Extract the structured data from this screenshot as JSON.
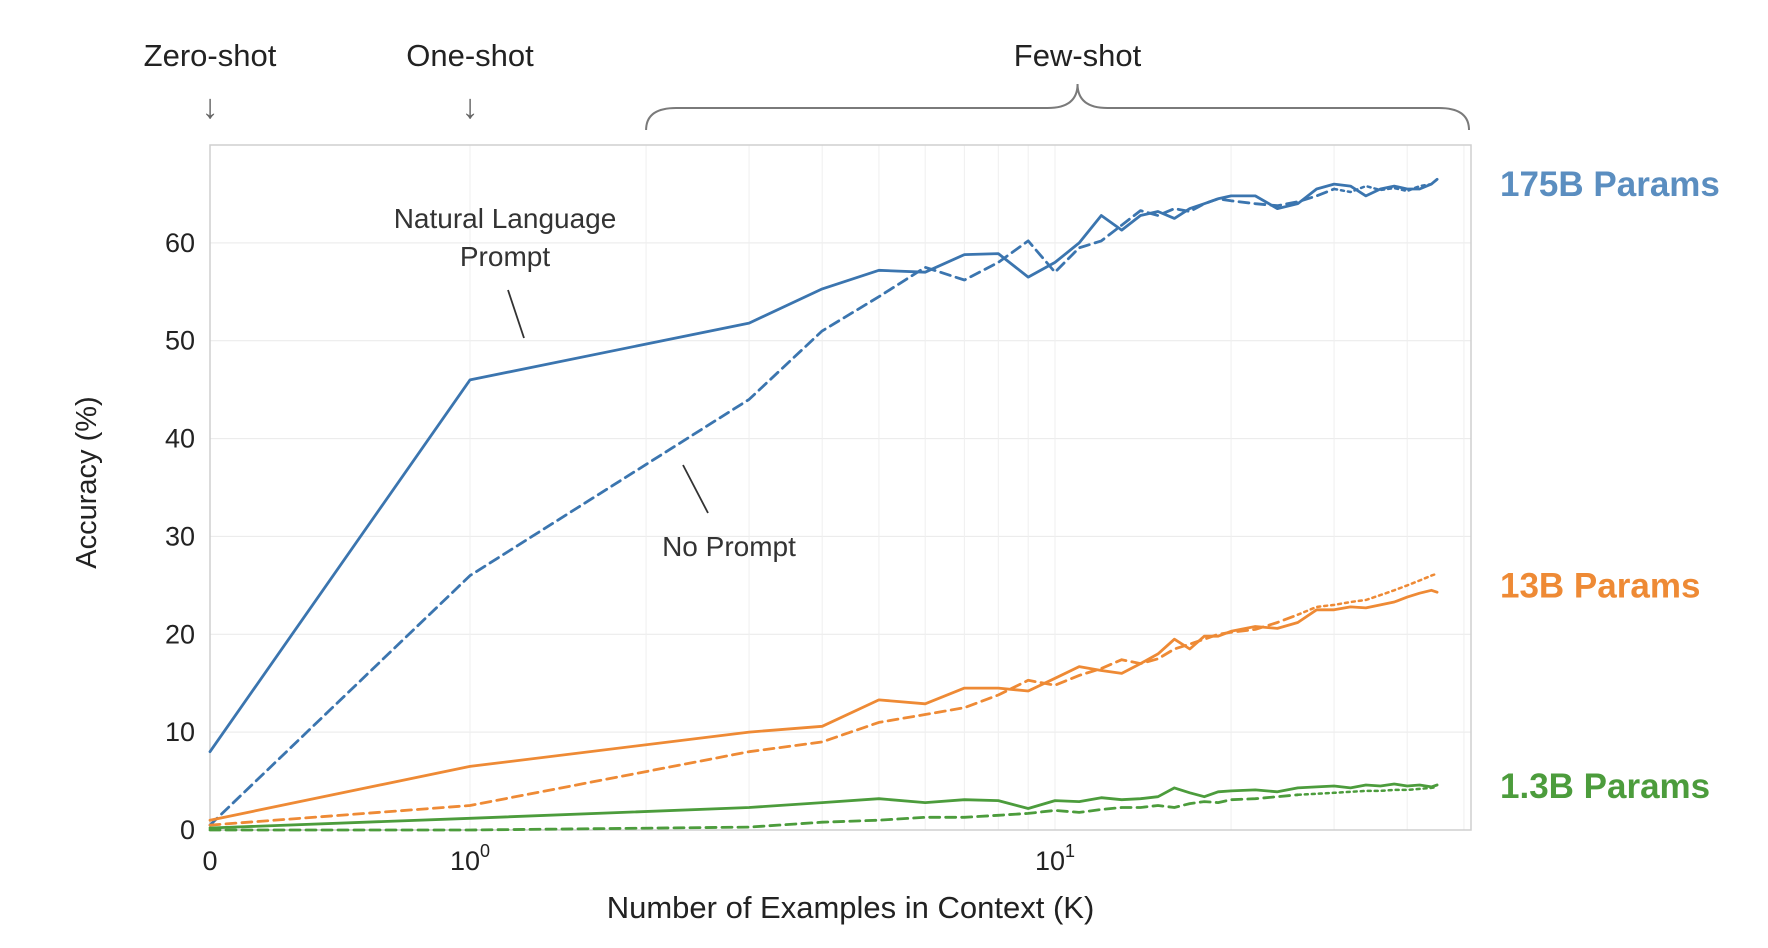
{
  "chart_data": {
    "type": "line",
    "xlabel": "Number of Examples in Context  (K)",
    "ylabel": "Accuracy (%)",
    "x_scale": "symlog",
    "xlim": [
      0,
      45
    ],
    "ylim": [
      0,
      70
    ],
    "y_ticks": [
      0,
      10,
      20,
      30,
      40,
      50,
      60
    ],
    "x_ticks": [
      {
        "value": 0,
        "label": "0",
        "exp": ""
      },
      {
        "value": 1,
        "label": "10",
        "exp": "0"
      },
      {
        "value": 10,
        "label": "10",
        "exp": "1"
      }
    ],
    "grid": true,
    "top_annotations": [
      {
        "text": "Zero-shot",
        "x": 0,
        "marker": "↓"
      },
      {
        "text": "One-shot",
        "x": 1,
        "marker": "↓"
      },
      {
        "text": "Few-shot",
        "x_range": [
          2,
          45
        ],
        "marker": "brace"
      }
    ],
    "annotations": [
      {
        "lines": [
          "Natural Language",
          "Prompt"
        ]
      },
      {
        "lines": [
          "No Prompt"
        ]
      }
    ],
    "series_labels": [
      {
        "text": "175B Params",
        "color": "#5b8ec0",
        "y": 66
      },
      {
        "text": "13B Params",
        "color": "#ee8a35",
        "y": 25
      },
      {
        "text": "1.3B Params",
        "color": "#4c9c3c",
        "y": 4.5
      }
    ],
    "series": [
      {
        "group": "175B Params",
        "style": "solid",
        "color": "#3b75af",
        "x": [
          0,
          1,
          3,
          4,
          5,
          6,
          7,
          8,
          9,
          10,
          11,
          12,
          13,
          14,
          15,
          16,
          17,
          18,
          19,
          20,
          22,
          24,
          26,
          28,
          30,
          32,
          34,
          36,
          38,
          40,
          42,
          44,
          45
        ],
        "y": [
          8,
          46,
          51.8,
          55.3,
          57.2,
          57,
          58.8,
          58.9,
          56.5,
          58,
          60,
          62.8,
          61.3,
          62.8,
          63.2,
          62.5,
          63.5,
          64,
          64.5,
          64.8,
          64.8,
          63.5,
          64,
          65.5,
          66,
          65.8,
          64.8,
          65.5,
          65.8,
          65.5,
          65.5,
          66,
          66.5
        ]
      },
      {
        "group": "175B Params",
        "style": "dashed",
        "color": "#3b75af",
        "x": [
          0,
          1,
          3,
          4,
          5,
          6,
          7,
          8,
          9,
          10,
          11,
          12,
          13,
          14,
          15,
          16,
          17,
          18,
          19,
          20,
          22,
          24,
          26,
          28,
          30
        ],
        "y": [
          0.5,
          26,
          44,
          51,
          54.5,
          57.5,
          56.2,
          58,
          60.2,
          57,
          59.5,
          60.2,
          61.8,
          63.3,
          62.8,
          63.5,
          63.2,
          64,
          64.5,
          64.3,
          64,
          63.8,
          64.2,
          64.8,
          65.5
        ]
      },
      {
        "group": "175B Params",
        "style": "dotted",
        "color": "#3b75af",
        "x": [
          30,
          32,
          34,
          36,
          38,
          40,
          42,
          44,
          45
        ],
        "y": [
          65.5,
          65.2,
          65.8,
          65.4,
          65.6,
          65.3,
          65.8,
          66,
          66.5
        ]
      },
      {
        "group": "13B Params",
        "style": "solid",
        "color": "#ee8a35",
        "x": [
          0,
          1,
          3,
          4,
          5,
          6,
          7,
          8,
          9,
          10,
          11,
          12,
          13,
          14,
          15,
          16,
          17,
          18,
          19,
          20,
          22,
          24,
          26,
          28,
          30,
          32,
          34,
          36,
          38,
          40,
          42,
          44,
          45
        ],
        "y": [
          1,
          6.5,
          10,
          10.6,
          13.3,
          12.9,
          14.5,
          14.5,
          14.2,
          15.5,
          16.7,
          16.3,
          16,
          17,
          18,
          19.5,
          18.5,
          19.8,
          19.8,
          20.3,
          20.8,
          20.6,
          21.2,
          22.5,
          22.5,
          22.8,
          22.7,
          23,
          23.3,
          23.8,
          24.2,
          24.5,
          24.3
        ]
      },
      {
        "group": "13B Params",
        "style": "dashed",
        "color": "#ee8a35",
        "x": [
          0,
          1,
          3,
          4,
          5,
          6,
          7,
          8,
          9,
          10,
          11,
          12,
          13,
          14,
          15,
          16,
          17,
          18,
          19,
          20,
          22,
          24,
          26
        ],
        "y": [
          0.5,
          2.5,
          8,
          9,
          11,
          11.8,
          12.5,
          13.8,
          15.3,
          14.8,
          15.8,
          16.5,
          17.4,
          17,
          17.5,
          18.5,
          19,
          19.5,
          20,
          20.2,
          20.5,
          21.2,
          22
        ]
      },
      {
        "group": "13B Params",
        "style": "dotted",
        "color": "#ee8a35",
        "x": [
          26,
          28,
          30,
          32,
          34,
          36,
          38,
          40,
          42,
          44,
          45
        ],
        "y": [
          22,
          22.8,
          23,
          23.3,
          23.5,
          24,
          24.5,
          25,
          25.5,
          26,
          26.2
        ]
      },
      {
        "group": "1.3B Params",
        "style": "solid",
        "color": "#4c9c3c",
        "x": [
          0,
          1,
          3,
          4,
          5,
          6,
          7,
          8,
          9,
          10,
          11,
          12,
          13,
          14,
          15,
          16,
          17,
          18,
          19,
          20,
          22,
          24,
          26,
          28,
          30,
          32,
          34,
          36,
          38,
          40,
          42,
          44,
          45
        ],
        "y": [
          0.2,
          1.2,
          2.3,
          2.8,
          3.2,
          2.8,
          3.1,
          3,
          2.2,
          3,
          2.9,
          3.3,
          3.1,
          3.2,
          3.4,
          4.3,
          3.8,
          3.4,
          3.9,
          4,
          4.1,
          3.9,
          4.3,
          4.4,
          4.5,
          4.3,
          4.6,
          4.5,
          4.7,
          4.5,
          4.6,
          4.4,
          4.6
        ]
      },
      {
        "group": "1.3B Params",
        "style": "dashed",
        "color": "#4c9c3c",
        "x": [
          0,
          1,
          3,
          4,
          5,
          6,
          7,
          8,
          9,
          10,
          11,
          12,
          13,
          14,
          15,
          16,
          17,
          18,
          19,
          20,
          22,
          24,
          26
        ],
        "y": [
          0,
          0,
          0.3,
          0.8,
          1,
          1.3,
          1.3,
          1.5,
          1.7,
          2,
          1.8,
          2.1,
          2.3,
          2.3,
          2.5,
          2.3,
          2.7,
          2.9,
          2.8,
          3.1,
          3.2,
          3.4,
          3.6
        ]
      },
      {
        "group": "1.3B Params",
        "style": "dotted",
        "color": "#4c9c3c",
        "x": [
          26,
          28,
          30,
          32,
          34,
          36,
          38,
          40,
          42,
          44,
          45
        ],
        "y": [
          3.6,
          3.7,
          3.8,
          3.9,
          4,
          4,
          4.1,
          4.1,
          4.2,
          4.3,
          4.4
        ]
      }
    ]
  }
}
